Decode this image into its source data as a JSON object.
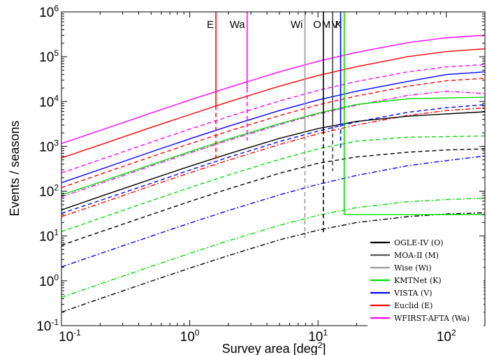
{
  "chart_data": {
    "type": "line",
    "xlabel": "Survey area  [deg",
    "xlabel_sup": "2",
    "xlabel_end": "]",
    "ylabel": "Events / seasons",
    "xscale": "log",
    "yscale": "log",
    "xlim": [
      0.1,
      200
    ],
    "ylim": [
      0.1,
      1000000
    ],
    "x_ticks": [
      {
        "value": 0.1,
        "base": "10",
        "exp": "-1"
      },
      {
        "value": 1,
        "base": "10",
        "exp": "0"
      },
      {
        "value": 10,
        "base": "10",
        "exp": "1"
      },
      {
        "value": 100,
        "base": "10",
        "exp": "2"
      }
    ],
    "y_ticks": [
      {
        "value": 0.1,
        "base": "10",
        "exp": "-1"
      },
      {
        "value": 1,
        "base": "10",
        "exp": "0"
      },
      {
        "value": 10,
        "base": "10",
        "exp": "1"
      },
      {
        "value": 100,
        "base": "10",
        "exp": "2"
      },
      {
        "value": 1000,
        "base": "10",
        "exp": "3"
      },
      {
        "value": 10000,
        "base": "10",
        "exp": "4"
      },
      {
        "value": 100000,
        "base": "10",
        "exp": "5"
      },
      {
        "value": 1000000,
        "base": "10",
        "exp": "6"
      }
    ],
    "curve_x": [
      0.1,
      0.2,
      0.5,
      1,
      2,
      5,
      10,
      20,
      50,
      100,
      200
    ],
    "series": [
      {
        "name": "WFIRST-AFTA (Wa)",
        "color": "#ff00ff",
        "style": "solid",
        "cut_at": 2.8,
        "values": [
          1150,
          2270,
          5550,
          10800,
          20500,
          46000,
          79000,
          125000,
          205000,
          265000,
          300000
        ]
      },
      {
        "name": "Euclid (E)",
        "color": "#ff0000",
        "style": "solid",
        "cut_at": 1.6,
        "values": [
          550,
          1080,
          2650,
          5100,
          9800,
          22000,
          38000,
          60000,
          100000,
          130000,
          150000
        ]
      },
      {
        "name": "WFIRST-AFTA (Wa)",
        "color": "#ff00ff",
        "style": "dashed",
        "cut_at": 2.8,
        "values": [
          255,
          505,
          1240,
          2420,
          4600,
          10300,
          17700,
          28000,
          46000,
          59000,
          67000
        ]
      },
      {
        "name": "VISTA (V)",
        "color": "#0000ff",
        "style": "solid",
        "cut_at": 15,
        "values": [
          155,
          305,
          750,
          1470,
          2800,
          6300,
          10800,
          17000,
          28000,
          40000,
          46000
        ]
      },
      {
        "name": "Euclid (E)",
        "color": "#ff0000",
        "style": "dashed",
        "cut_at": 1.6,
        "values": [
          120,
          238,
          585,
          1140,
          2170,
          4850,
          8400,
          13300,
          21900,
          29000,
          33000
        ]
      },
      {
        "name": "WFIRST-AFTA (Wa)",
        "color": "#ff00ff",
        "style": "dashdot",
        "cut_at": 2.8,
        "values": [
          75,
          148,
          365,
          713,
          1360,
          3050,
          5250,
          8300,
          13700,
          17000,
          15000
        ]
      },
      {
        "name": "KMTNet (K)",
        "color": "#00dd00",
        "style": "solid",
        "cut_at": 16,
        "values": [
          82,
          160,
          390,
          760,
          1450,
          3200,
          5500,
          8600,
          11500,
          12000,
          12500
        ]
      },
      {
        "name": "Euclid (E)",
        "color": "#ff0000",
        "style": "dashdot",
        "cut_at": 1.6,
        "values": [
          27,
          53,
          131,
          257,
          490,
          1100,
          1900,
          3000,
          4900,
          6300,
          7200
        ]
      },
      {
        "name": "VISTA (V)",
        "color": "#0000ff",
        "style": "dashed",
        "cut_at": 15,
        "values": [
          32,
          62,
          150,
          295,
          570,
          1280,
          2200,
          3500,
          5750,
          7300,
          8500
        ]
      },
      {
        "name": "OGLE-IV (O)",
        "color": "#000000",
        "style": "solid",
        "cut_at": 11,
        "values": [
          38,
          76,
          185,
          360,
          680,
          1500,
          2500,
          3600,
          4700,
          5300,
          5900
        ]
      },
      {
        "name": "KMTNet (K)",
        "color": "#00dd00",
        "style": "dashed",
        "cut_at": 16,
        "values": [
          12.5,
          25,
          61,
          120,
          230,
          510,
          880,
          1300,
          1600,
          1650,
          1700
        ]
      },
      {
        "name": "OGLE-IV (O)",
        "color": "#000000",
        "style": "dashed",
        "cut_at": 11,
        "values": [
          6.2,
          12.3,
          30,
          59,
          112,
          250,
          420,
          580,
          740,
          830,
          880
        ]
      },
      {
        "name": "VISTA (V)",
        "color": "#0000ff",
        "style": "dashdot",
        "cut_at": 15,
        "values": [
          2.05,
          4.05,
          9.9,
          19.4,
          37,
          83,
          142,
          225,
          370,
          480,
          610
        ]
      },
      {
        "name": "KMTNet (K)",
        "color": "#00dd00",
        "style": "dashdot",
        "cut_at": 16,
        "values": [
          0.43,
          0.85,
          2.1,
          4.1,
          7.8,
          17.3,
          29,
          43,
          58,
          65,
          70
        ]
      },
      {
        "name": "OGLE-IV (O)",
        "color": "#000000",
        "style": "dashdot",
        "cut_at": 11,
        "values": [
          0.2,
          0.4,
          0.98,
          1.92,
          3.65,
          8.2,
          13.5,
          20,
          27,
          31,
          33
        ]
      }
    ],
    "vlines": [
      {
        "label": "E",
        "x": 1.6,
        "color": "#ff0000",
        "y_solid_from": 8000,
        "y_dashed_from": 450
      },
      {
        "label": "Wa",
        "x": 2.8,
        "color": "#ff00ff",
        "y_solid_from": 20000,
        "y_dashed_from": 1350
      },
      {
        "label": "Wi",
        "x": 7.9,
        "color": "#999999",
        "y_solid_from": 2400,
        "y_dashed_from": 8
      },
      {
        "label": "O",
        "x": 11,
        "color": "#000000",
        "y_solid_from": 2300,
        "y_dashed_from": 11
      },
      {
        "label": "M",
        "x": 13,
        "color": "#444444",
        "y_solid_from": 2800,
        "y_dashed_from": 280
      },
      {
        "label": "V",
        "x": 15,
        "color": "#0000ff",
        "y_solid_from": 3400,
        "y_dashed_from": 900
      },
      {
        "label": "K",
        "x": 16,
        "color": "#00dd00",
        "y_solid_from": 30,
        "y_dashed_from": 30
      }
    ],
    "legend": {
      "placement": "bottom-right",
      "entries": [
        {
          "label": "OGLE-IV  (O)",
          "color": "#000000"
        },
        {
          "label": "MOA-II  (M)",
          "color": "#555555"
        },
        {
          "label": "Wise  (Wi)",
          "color": "#999999"
        },
        {
          "label": "KMTNet  (K)",
          "color": "#00dd00"
        },
        {
          "label": "VISTA  (V)",
          "color": "#0000ff"
        },
        {
          "label": "Euclid  (E)",
          "color": "#ff0000"
        },
        {
          "label": "WFIRST-AFTA  (Wa)",
          "color": "#ff00ff"
        }
      ]
    }
  }
}
